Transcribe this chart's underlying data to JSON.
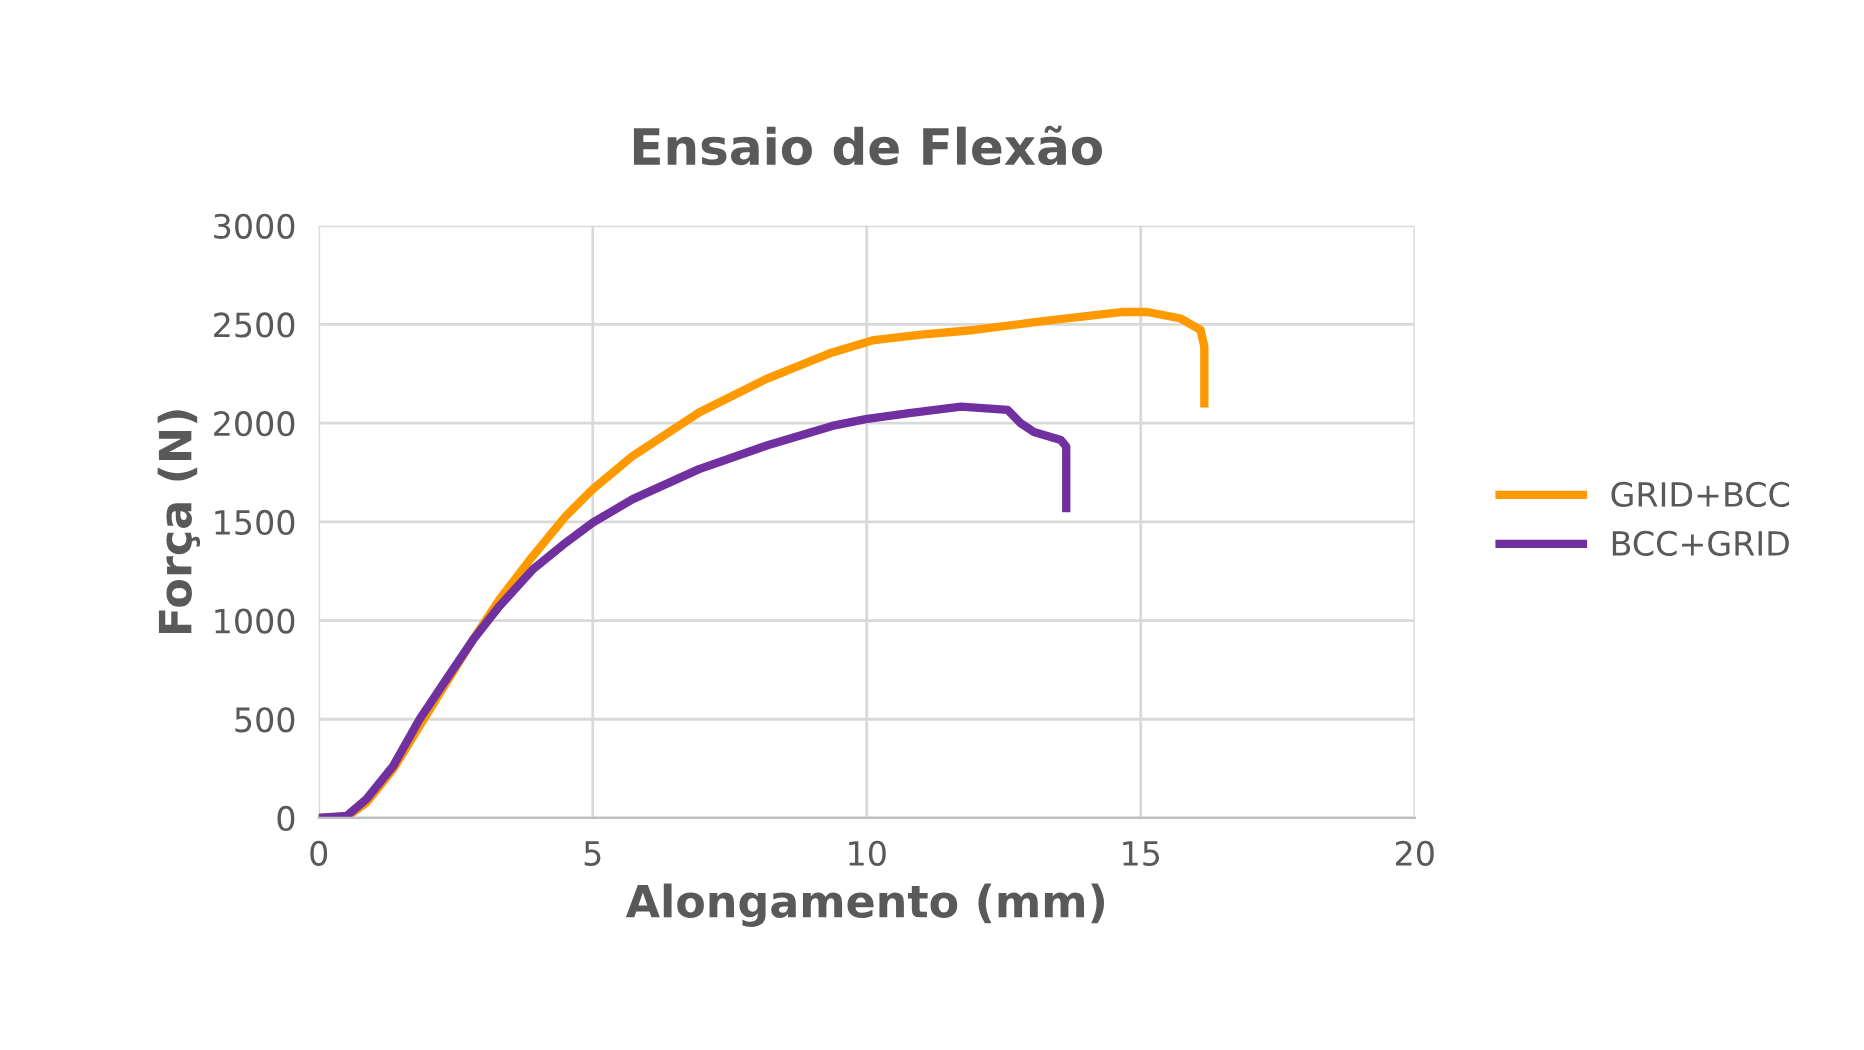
{
  "chart_data": {
    "type": "line",
    "title": "Ensaio de Flexão",
    "xlabel": "Alongamento (mm)",
    "ylabel": "Força (N)",
    "xlim": [
      0,
      20
    ],
    "xticks": [
      0,
      5,
      10,
      15,
      20
    ],
    "ylim": [
      0,
      3000
    ],
    "yticks": [
      0,
      500,
      1000,
      1500,
      2000,
      2500,
      3000
    ],
    "grid": true,
    "legend": "right",
    "marker": "none",
    "line_style": "solid",
    "series": [
      {
        "name": "GRID+BCC",
        "color": "#ff9900",
        "x": [
          0,
          0.51,
          0.87,
          1.36,
          1.84,
          2.33,
          2.82,
          3.3,
          3.91,
          4.51,
          5.0,
          5.73,
          6.94,
          8.16,
          9.37,
          10.13,
          10.99,
          11.96,
          13.18,
          14.64,
          15.12,
          15.73,
          16.09,
          16.16,
          16.16
        ],
        "values": [
          0,
          5,
          78,
          247,
          466,
          686,
          905,
          1108,
          1328,
          1530,
          1665,
          1834,
          2054,
          2223,
          2358,
          2421,
          2448,
          2472,
          2515,
          2563,
          2563,
          2530,
          2472,
          2388,
          2100
        ]
      },
      {
        "name": "BCC+GRID",
        "color": "#7030a0",
        "x": [
          0,
          0.51,
          0.87,
          1.36,
          1.84,
          2.33,
          2.82,
          3.3,
          3.91,
          4.51,
          5.0,
          5.73,
          6.94,
          8.16,
          9.37,
          9.98,
          10.74,
          11.72,
          12.57,
          12.81,
          13.05,
          13.54,
          13.64,
          13.64
        ],
        "values": [
          0,
          10,
          95,
          264,
          500,
          703,
          905,
          1074,
          1260,
          1395,
          1496,
          1615,
          1767,
          1885,
          1986,
          2020,
          2049,
          2084,
          2067,
          1999,
          1955,
          1915,
          1881,
          1570
        ]
      }
    ]
  }
}
